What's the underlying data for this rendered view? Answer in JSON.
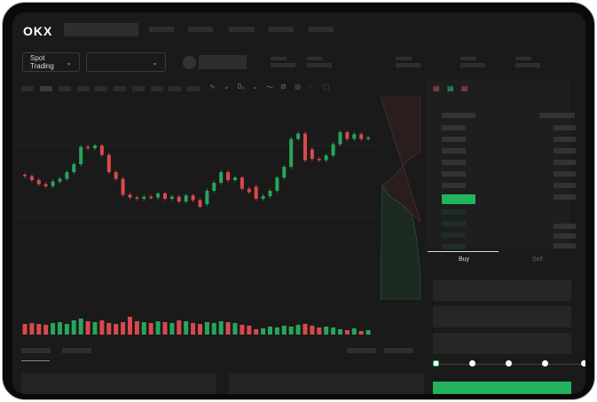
{
  "header": {
    "logo": "OKX"
  },
  "toolbar": {
    "market_selector": "Spot Trading",
    "pair_selector": ""
  },
  "order_form": {
    "tabs": [
      "Buy",
      "Sell"
    ],
    "active_tab": "Buy",
    "slider_fraction": 0,
    "slider_steps": 5,
    "accent": "#22b35e"
  },
  "colors": {
    "up": "#26a65b",
    "down": "#d9494c",
    "background": "#1a1a1a"
  },
  "chart_data": {
    "type": "candlestick",
    "open": [
      96,
      94,
      88,
      82,
      79,
      86,
      90,
      100,
      112,
      138,
      136,
      140,
      126,
      100,
      90,
      66,
      62,
      60,
      63,
      62,
      68,
      60,
      63,
      56,
      65,
      58,
      52,
      72,
      84,
      100,
      88,
      92,
      75,
      78,
      60,
      64,
      72,
      92,
      108,
      150,
      158,
      134,
      120,
      118,
      125,
      142,
      160,
      150,
      157,
      150
    ],
    "close": [
      94,
      88,
      82,
      79,
      86,
      90,
      100,
      112,
      138,
      136,
      140,
      126,
      100,
      90,
      66,
      62,
      60,
      63,
      62,
      68,
      60,
      63,
      56,
      65,
      58,
      48,
      72,
      84,
      100,
      88,
      92,
      75,
      70,
      60,
      64,
      72,
      92,
      108,
      150,
      158,
      118,
      120,
      118,
      125,
      142,
      160,
      150,
      157,
      150,
      152
    ],
    "volume": [
      12,
      13,
      12,
      11,
      13,
      14,
      12,
      16,
      18,
      15,
      14,
      16,
      13,
      12,
      14,
      20,
      15,
      14,
      13,
      15,
      14,
      13,
      16,
      15,
      13,
      12,
      14,
      13,
      15,
      14,
      13,
      11,
      10,
      6,
      7,
      9,
      8,
      10,
      9,
      11,
      12,
      10,
      8,
      9,
      8,
      6,
      5,
      7,
      4,
      5
    ]
  }
}
